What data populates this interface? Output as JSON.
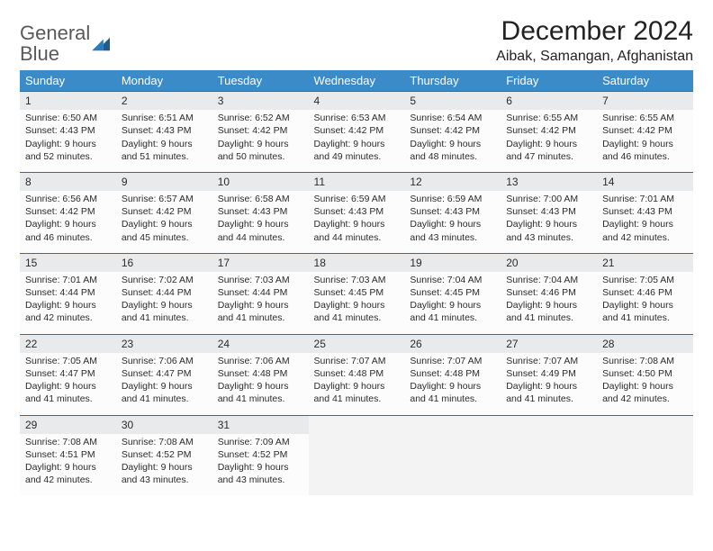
{
  "logo": {
    "word1": "General",
    "word2": "Blue"
  },
  "header": {
    "title": "December 2024",
    "location": "Aibak, Samangan, Afghanistan"
  },
  "colors": {
    "header_bg": "#3b8bc8",
    "header_text": "#ffffff",
    "daynum_bg": "#e9eaeb",
    "rule": "#2f6e9e",
    "cell_bg": "#fcfcfc",
    "empty_bg": "#f3f3f3",
    "text": "#2b2b2b",
    "logo_gray": "#595959",
    "logo_blue": "#2b7bbd"
  },
  "weekdays": [
    "Sunday",
    "Monday",
    "Tuesday",
    "Wednesday",
    "Thursday",
    "Friday",
    "Saturday"
  ],
  "days": [
    {
      "n": "1",
      "sr": "6:50 AM",
      "ss": "4:43 PM",
      "dl": "9 hours and 52 minutes."
    },
    {
      "n": "2",
      "sr": "6:51 AM",
      "ss": "4:43 PM",
      "dl": "9 hours and 51 minutes."
    },
    {
      "n": "3",
      "sr": "6:52 AM",
      "ss": "4:42 PM",
      "dl": "9 hours and 50 minutes."
    },
    {
      "n": "4",
      "sr": "6:53 AM",
      "ss": "4:42 PM",
      "dl": "9 hours and 49 minutes."
    },
    {
      "n": "5",
      "sr": "6:54 AM",
      "ss": "4:42 PM",
      "dl": "9 hours and 48 minutes."
    },
    {
      "n": "6",
      "sr": "6:55 AM",
      "ss": "4:42 PM",
      "dl": "9 hours and 47 minutes."
    },
    {
      "n": "7",
      "sr": "6:55 AM",
      "ss": "4:42 PM",
      "dl": "9 hours and 46 minutes."
    },
    {
      "n": "8",
      "sr": "6:56 AM",
      "ss": "4:42 PM",
      "dl": "9 hours and 46 minutes."
    },
    {
      "n": "9",
      "sr": "6:57 AM",
      "ss": "4:42 PM",
      "dl": "9 hours and 45 minutes."
    },
    {
      "n": "10",
      "sr": "6:58 AM",
      "ss": "4:43 PM",
      "dl": "9 hours and 44 minutes."
    },
    {
      "n": "11",
      "sr": "6:59 AM",
      "ss": "4:43 PM",
      "dl": "9 hours and 44 minutes."
    },
    {
      "n": "12",
      "sr": "6:59 AM",
      "ss": "4:43 PM",
      "dl": "9 hours and 43 minutes."
    },
    {
      "n": "13",
      "sr": "7:00 AM",
      "ss": "4:43 PM",
      "dl": "9 hours and 43 minutes."
    },
    {
      "n": "14",
      "sr": "7:01 AM",
      "ss": "4:43 PM",
      "dl": "9 hours and 42 minutes."
    },
    {
      "n": "15",
      "sr": "7:01 AM",
      "ss": "4:44 PM",
      "dl": "9 hours and 42 minutes."
    },
    {
      "n": "16",
      "sr": "7:02 AM",
      "ss": "4:44 PM",
      "dl": "9 hours and 41 minutes."
    },
    {
      "n": "17",
      "sr": "7:03 AM",
      "ss": "4:44 PM",
      "dl": "9 hours and 41 minutes."
    },
    {
      "n": "18",
      "sr": "7:03 AM",
      "ss": "4:45 PM",
      "dl": "9 hours and 41 minutes."
    },
    {
      "n": "19",
      "sr": "7:04 AM",
      "ss": "4:45 PM",
      "dl": "9 hours and 41 minutes."
    },
    {
      "n": "20",
      "sr": "7:04 AM",
      "ss": "4:46 PM",
      "dl": "9 hours and 41 minutes."
    },
    {
      "n": "21",
      "sr": "7:05 AM",
      "ss": "4:46 PM",
      "dl": "9 hours and 41 minutes."
    },
    {
      "n": "22",
      "sr": "7:05 AM",
      "ss": "4:47 PM",
      "dl": "9 hours and 41 minutes."
    },
    {
      "n": "23",
      "sr": "7:06 AM",
      "ss": "4:47 PM",
      "dl": "9 hours and 41 minutes."
    },
    {
      "n": "24",
      "sr": "7:06 AM",
      "ss": "4:48 PM",
      "dl": "9 hours and 41 minutes."
    },
    {
      "n": "25",
      "sr": "7:07 AM",
      "ss": "4:48 PM",
      "dl": "9 hours and 41 minutes."
    },
    {
      "n": "26",
      "sr": "7:07 AM",
      "ss": "4:48 PM",
      "dl": "9 hours and 41 minutes."
    },
    {
      "n": "27",
      "sr": "7:07 AM",
      "ss": "4:49 PM",
      "dl": "9 hours and 41 minutes."
    },
    {
      "n": "28",
      "sr": "7:08 AM",
      "ss": "4:50 PM",
      "dl": "9 hours and 42 minutes."
    },
    {
      "n": "29",
      "sr": "7:08 AM",
      "ss": "4:51 PM",
      "dl": "9 hours and 42 minutes."
    },
    {
      "n": "30",
      "sr": "7:08 AM",
      "ss": "4:52 PM",
      "dl": "9 hours and 43 minutes."
    },
    {
      "n": "31",
      "sr": "7:09 AM",
      "ss": "4:52 PM",
      "dl": "9 hours and 43 minutes."
    }
  ],
  "labels": {
    "sunrise": "Sunrise: ",
    "sunset": "Sunset: ",
    "daylight": "Daylight: "
  }
}
